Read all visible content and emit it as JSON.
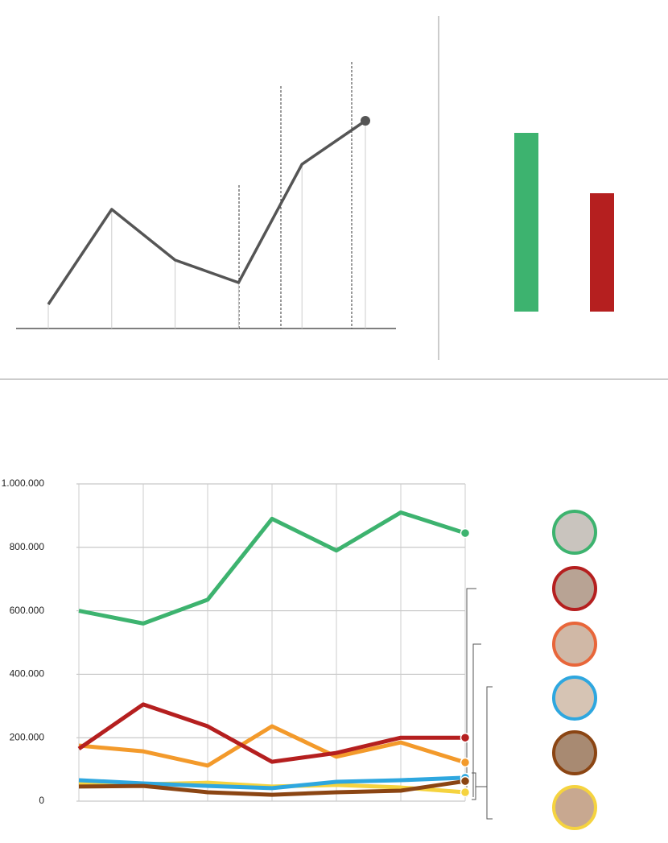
{
  "chart_data": [
    {
      "type": "line",
      "categories": [
        null,
        null,
        null,
        null,
        null,
        null
      ],
      "values": [
        30,
        148,
        85,
        57,
        204,
        258
      ],
      "color": "#555555",
      "ylim": [
        0,
        300
      ]
    },
    {
      "type": "bar",
      "categories": [
        null,
        null
      ],
      "values": [
        222,
        147
      ],
      "colors": [
        "#3db36f",
        "#b51f1f"
      ],
      "ylim": [
        0,
        300
      ]
    },
    {
      "type": "line",
      "categories": [
        null,
        null,
        null,
        null,
        null,
        null,
        null
      ],
      "series": [
        {
          "color": "#3db36f",
          "values": [
            600000,
            560000,
            635000,
            890000,
            790000,
            910000,
            845000
          ]
        },
        {
          "color": "#f39a2b",
          "values": [
            175000,
            157000,
            112000,
            236000,
            140000,
            185000,
            122000
          ]
        },
        {
          "color": "#b51f1f",
          "values": [
            165000,
            305000,
            236000,
            124000,
            152000,
            200000,
            200000
          ]
        },
        {
          "color": "#f5d33f",
          "values": [
            56000,
            53000,
            58000,
            46000,
            51000,
            43000,
            28000
          ]
        },
        {
          "color": "#2ea7df",
          "values": [
            66000,
            56000,
            48000,
            41000,
            61000,
            66000,
            74000
          ]
        },
        {
          "color": "#8b4513",
          "values": [
            46000,
            48000,
            28000,
            20000,
            28000,
            33000,
            63000
          ]
        }
      ],
      "ylim": [
        0,
        1000000
      ],
      "yticks": [
        0,
        {
          "value": 200000,
          "label": "200.000"
        },
        {
          "value": 400000,
          "label": "400.000"
        },
        {
          "value": 600000,
          "label": "600.000"
        },
        {
          "value": 800000,
          "label": "800.000"
        },
        {
          "value": 1000000,
          "label": "1.000.000"
        }
      ],
      "grid": true
    }
  ]
}
